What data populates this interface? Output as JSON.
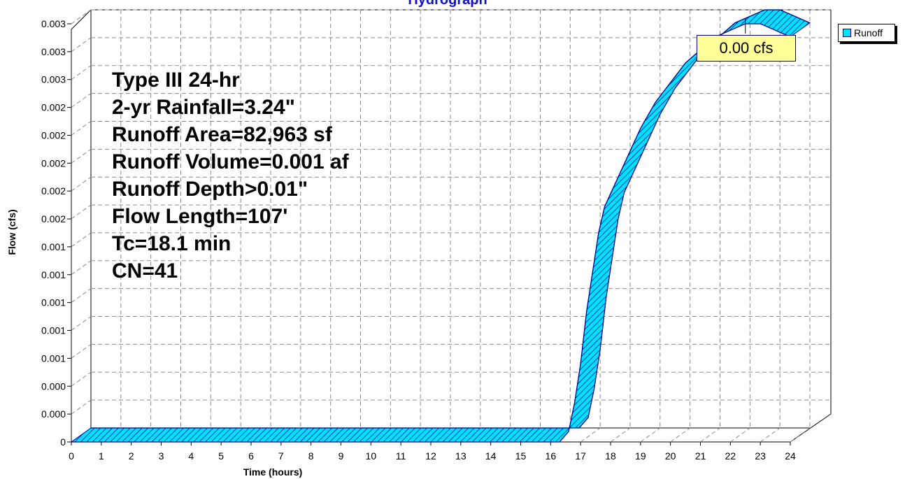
{
  "chart_data": {
    "type": "area",
    "title": "Hydrograph",
    "xlabel": "Time (hours)",
    "ylabel": "Flow (cfs)",
    "xlim": [
      0,
      24
    ],
    "ylim": [
      0,
      0.0032
    ],
    "x_ticks": [
      "0",
      "1",
      "2",
      "3",
      "4",
      "5",
      "6",
      "7",
      "8",
      "9",
      "10",
      "11",
      "12",
      "13",
      "14",
      "15",
      "16",
      "17",
      "18",
      "19",
      "20",
      "21",
      "22",
      "23",
      "24"
    ],
    "y_ticks": [
      "0",
      "0.000",
      "0.000",
      "0.001",
      "0.001",
      "0.001",
      "0.001",
      "0.001",
      "0.002",
      "0.002",
      "0.002",
      "0.002",
      "0.002",
      "0.003",
      "0.003",
      "0.003"
    ],
    "grid": true,
    "legend_position": "top-right",
    "colors": {
      "fill": "#00e0ff",
      "edge": "#00008b",
      "title": "#1010cc",
      "peak_label_bg": "#ffff99"
    },
    "series": [
      {
        "name": "Runoff",
        "x": [
          0,
          16.3,
          16.6,
          16.8,
          17.0,
          17.2,
          17.4,
          17.6,
          17.8,
          18.0,
          18.3,
          18.6,
          19.0,
          19.5,
          20.0,
          20.5,
          21.0,
          21.5,
          22.0,
          22.5,
          23.0,
          23.5,
          24.0
        ],
        "values": [
          0,
          0,
          8e-05,
          0.0003,
          0.0006,
          0.001,
          0.0013,
          0.0016,
          0.0018,
          0.0019,
          0.00205,
          0.0022,
          0.0024,
          0.0026,
          0.00275,
          0.0029,
          0.003,
          0.0031,
          0.00315,
          0.0032,
          0.0032,
          0.00315,
          0.0031
        ]
      }
    ],
    "peak_label": "0.00 cfs",
    "peak_x": 22.5,
    "annotations": [
      "Type III 24-hr",
      "2-yr Rainfall=3.24\"",
      "Runoff Area=82,963 sf",
      "Runoff Volume=0.001 af",
      "Runoff Depth>0.01\"",
      "Flow Length=107'",
      "Tc=18.1 min",
      "CN=41"
    ]
  },
  "legend": {
    "label": "Runoff"
  }
}
